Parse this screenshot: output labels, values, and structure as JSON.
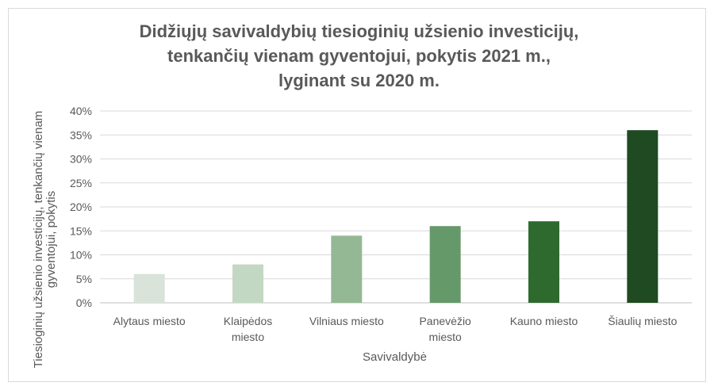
{
  "chart_data": {
    "type": "bar",
    "title_lines": [
      "Didžiųjų savivaldybių tiesioginių užsienio investicijų,",
      "tenkančių vienam gyventojui, pokytis 2021 m.,",
      "lyginant su 2020 m."
    ],
    "xlabel": "Savivaldybė",
    "ylabel": "Tiesioginių užsienio investicijų, tenkančių vienam gyventojui, pokytis",
    "categories": [
      "Alytaus miesto",
      "Klaipėdos miesto",
      "Vilniaus miesto",
      "Panevėžio miesto",
      "Kauno miesto",
      "Šiaulių miesto"
    ],
    "category_lines": [
      [
        "Alytaus miesto"
      ],
      [
        "Klaipėdos",
        "miesto"
      ],
      [
        "Vilniaus miesto"
      ],
      [
        "Panevėžio",
        "miesto"
      ],
      [
        "Kauno miesto"
      ],
      [
        "Šiaulių miesto"
      ]
    ],
    "values": [
      6,
      8,
      14,
      16,
      17,
      36
    ],
    "colors": [
      "#d9e3d9",
      "#c2d8c3",
      "#94b894",
      "#66996a",
      "#2e6a2e",
      "#1f4a22"
    ],
    "ylim": [
      0,
      40
    ],
    "yticks": [
      0,
      5,
      10,
      15,
      20,
      25,
      30,
      35,
      40
    ],
    "ytick_labels": [
      "0%",
      "5%",
      "10%",
      "15%",
      "20%",
      "25%",
      "30%",
      "35%",
      "40%"
    ],
    "grid": true,
    "legend": "none"
  }
}
